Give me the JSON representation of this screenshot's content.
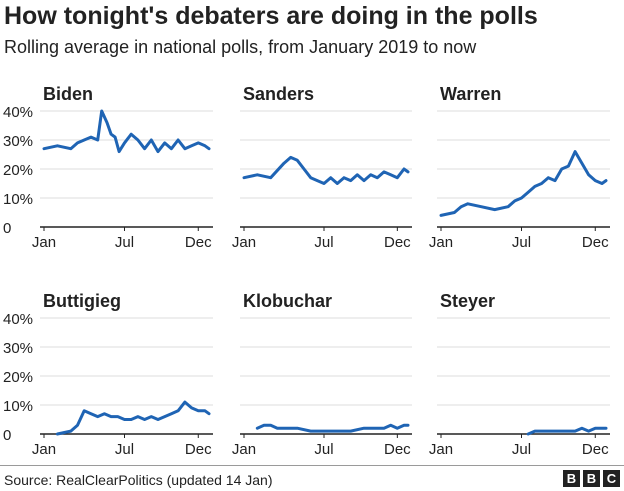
{
  "header": {
    "title": "How tonight's debaters are doing in the polls",
    "subtitle": "Rolling average in national polls, from January 2019 to now"
  },
  "footer": {
    "source": "Source: RealClearPolitics (updated 14 Jan)",
    "logo_letters": [
      "B",
      "B",
      "C"
    ]
  },
  "colors": {
    "line": "#1f64b4",
    "grid": "#dcdcdc",
    "axis": "#222222",
    "text": "#222222"
  },
  "chart_data": [
    {
      "type": "line",
      "title": "Biden",
      "x_labels": [
        "Jan",
        "Jul",
        "Dec"
      ],
      "y_ticks": [
        "0",
        "10%",
        "20%",
        "30%",
        "40%"
      ],
      "ylim": [
        0,
        40
      ],
      "grid": true,
      "series": [
        {
          "x": [
            0,
            1,
            2,
            2.5,
            3,
            3.5,
            4,
            4.3,
            4.7,
            5,
            5.3,
            5.6,
            6,
            6.5,
            7,
            7.5,
            8,
            8.5,
            9,
            9.5,
            10,
            10.5,
            11,
            11.5,
            12,
            12.3
          ],
          "values": [
            27,
            28,
            27,
            29,
            30,
            31,
            30,
            40,
            36,
            32,
            31,
            26,
            29,
            32,
            30,
            27,
            30,
            26,
            29,
            27,
            30,
            27,
            28,
            29,
            28,
            27
          ]
        }
      ]
    },
    {
      "type": "line",
      "title": "Sanders",
      "x_labels": [
        "Jan",
        "Jul",
        "Dec"
      ],
      "y_ticks": [
        "0",
        "10%",
        "20%",
        "30%",
        "40%"
      ],
      "ylim": [
        0,
        40
      ],
      "grid": true,
      "series": [
        {
          "x": [
            0,
            1,
            2,
            3,
            3.5,
            4,
            4.5,
            5,
            5.5,
            6,
            6.5,
            7,
            7.5,
            8,
            8.5,
            9,
            9.5,
            10,
            10.5,
            11,
            11.5,
            12,
            12.3
          ],
          "values": [
            17,
            18,
            17,
            22,
            24,
            23,
            20,
            17,
            16,
            15,
            17,
            15,
            17,
            16,
            18,
            16,
            18,
            17,
            19,
            18,
            17,
            20,
            19
          ]
        }
      ]
    },
    {
      "type": "line",
      "title": "Warren",
      "x_labels": [
        "Jan",
        "Jul",
        "Dec"
      ],
      "y_ticks": [
        "0",
        "10%",
        "20%",
        "30%",
        "40%"
      ],
      "ylim": [
        0,
        40
      ],
      "grid": true,
      "series": [
        {
          "x": [
            0,
            1,
            1.5,
            2,
            3,
            4,
            5,
            5.5,
            6,
            6.5,
            7,
            7.5,
            8,
            8.5,
            9,
            9.5,
            10,
            10.5,
            11,
            11.5,
            12,
            12.3
          ],
          "values": [
            4,
            5,
            7,
            8,
            7,
            6,
            7,
            9,
            10,
            12,
            14,
            15,
            17,
            16,
            20,
            21,
            26,
            22,
            18,
            16,
            15,
            16
          ]
        }
      ]
    },
    {
      "type": "line",
      "title": "Buttigieg",
      "x_labels": [
        "Jan",
        "Jul",
        "Dec"
      ],
      "y_ticks": [
        "0",
        "10%",
        "20%",
        "30%",
        "40%"
      ],
      "ylim": [
        0,
        40
      ],
      "grid": true,
      "series": [
        {
          "x": [
            1,
            2,
            2.5,
            3,
            3.5,
            4,
            4.5,
            5,
            5.5,
            6,
            6.5,
            7,
            7.5,
            8,
            8.5,
            9,
            9.5,
            10,
            10.5,
            11,
            11.5,
            12,
            12.3
          ],
          "values": [
            0,
            1,
            3,
            8,
            7,
            6,
            7,
            6,
            6,
            5,
            5,
            6,
            5,
            6,
            5,
            6,
            7,
            8,
            11,
            9,
            8,
            8,
            7
          ]
        }
      ]
    },
    {
      "type": "line",
      "title": "Klobuchar",
      "x_labels": [
        "Jan",
        "Jul",
        "Dec"
      ],
      "y_ticks": [
        "0",
        "10%",
        "20%",
        "30%",
        "40%"
      ],
      "ylim": [
        0,
        40
      ],
      "grid": true,
      "series": [
        {
          "x": [
            1,
            1.5,
            2,
            2.5,
            3,
            4,
            5,
            6,
            7,
            8,
            9,
            10,
            10.5,
            11,
            11.5,
            12,
            12.3
          ],
          "values": [
            2,
            3,
            3,
            2,
            2,
            2,
            1,
            1,
            1,
            1,
            2,
            2,
            2,
            3,
            2,
            3,
            3
          ]
        }
      ]
    },
    {
      "type": "line",
      "title": "Steyer",
      "x_labels": [
        "Jan",
        "Jul",
        "Dec"
      ],
      "y_ticks": [
        "0",
        "10%",
        "20%",
        "30%",
        "40%"
      ],
      "ylim": [
        0,
        40
      ],
      "grid": true,
      "series": [
        {
          "x": [
            6.5,
            7,
            8,
            9,
            10,
            10.5,
            11,
            11.5,
            12,
            12.3
          ],
          "values": [
            0,
            1,
            1,
            1,
            1,
            2,
            1,
            2,
            2,
            2
          ]
        }
      ]
    }
  ]
}
